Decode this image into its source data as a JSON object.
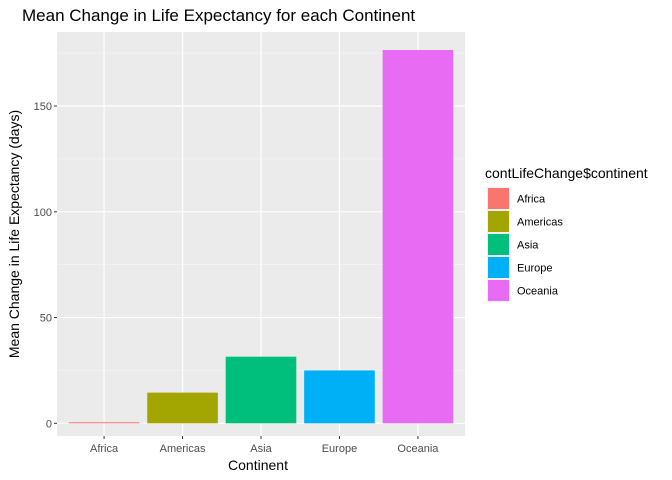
{
  "chart_data": {
    "type": "bar",
    "title": "Mean Change in Life Expectancy for each Continent",
    "xlabel": "Continent",
    "ylabel": "Mean Change in Life Expectancy (days)",
    "categories": [
      "Africa",
      "Americas",
      "Asia",
      "Europe",
      "Oceania"
    ],
    "values": [
      0.5,
      14.5,
      31.5,
      25,
      176.5
    ],
    "colors": [
      "#F8766D",
      "#A3A500",
      "#00BF7D",
      "#00B0F6",
      "#E76BF3"
    ],
    "ylim": [
      -6,
      185
    ],
    "yticks": [
      0,
      50,
      100,
      150
    ],
    "ytick_labels": [
      "0",
      "50",
      "100",
      "150"
    ],
    "grid": true,
    "legend": {
      "title": "contLifeChange$continent",
      "placement": "right",
      "entries": [
        "Africa",
        "Americas",
        "Asia",
        "Europe",
        "Oceania"
      ]
    }
  }
}
